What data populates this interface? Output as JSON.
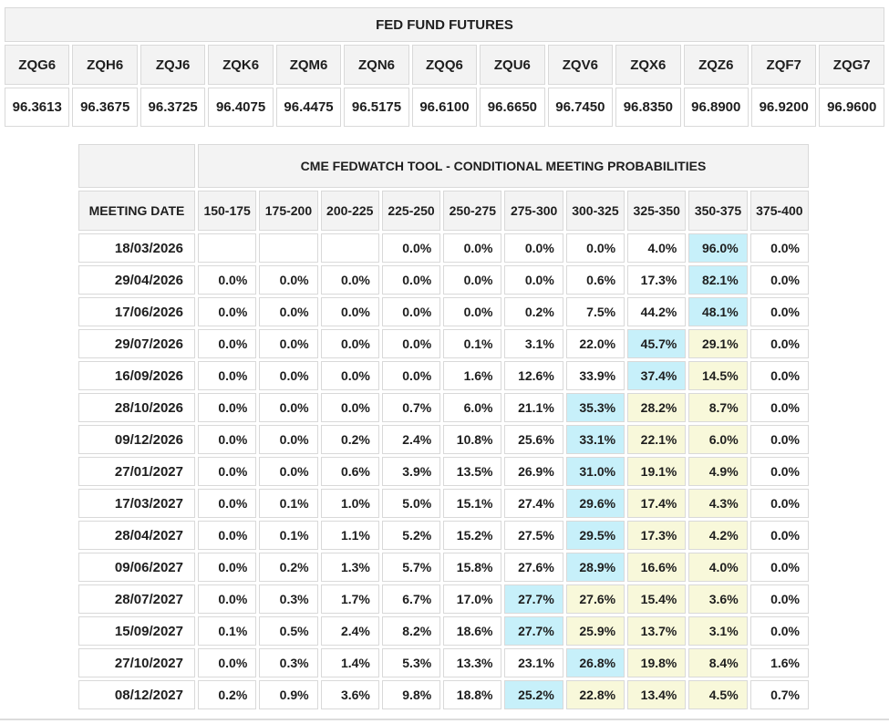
{
  "colors": {
    "cyan_highlight": "#c7f0fa",
    "yellow_highlight": "#f8f8da",
    "header_background": "#f3f3f3",
    "cell_border": "#d9d9d9"
  },
  "futures_table": {
    "title": "FED FUND FUTURES",
    "columns": [
      "ZQG6",
      "ZQH6",
      "ZQJ6",
      "ZQK6",
      "ZQM6",
      "ZQN6",
      "ZQQ6",
      "ZQU6",
      "ZQV6",
      "ZQX6",
      "ZQZ6",
      "ZQF7",
      "ZQG7"
    ],
    "values": [
      "96.3613",
      "96.3675",
      "96.3725",
      "96.4075",
      "96.4475",
      "96.5175",
      "96.6100",
      "96.6650",
      "96.7450",
      "96.8350",
      "96.8900",
      "96.9200",
      "96.9600"
    ]
  },
  "fedwatch_table": {
    "title": "CME FEDWATCH TOOL - CONDITIONAL MEETING PROBABILITIES",
    "date_header": "MEETING DATE",
    "rate_columns": [
      "150-175",
      "175-200",
      "200-225",
      "225-250",
      "250-275",
      "275-300",
      "300-325",
      "325-350",
      "350-375",
      "375-400"
    ],
    "rows": [
      {
        "date": "18/03/2026",
        "values": [
          "",
          "",
          "",
          "0.0%",
          "0.0%",
          "0.0%",
          "0.0%",
          "4.0%",
          "96.0%",
          "0.0%"
        ],
        "highlight": {
          "cyan": 8,
          "yellow": []
        }
      },
      {
        "date": "29/04/2026",
        "values": [
          "0.0%",
          "0.0%",
          "0.0%",
          "0.0%",
          "0.0%",
          "0.0%",
          "0.6%",
          "17.3%",
          "82.1%",
          "0.0%"
        ],
        "highlight": {
          "cyan": 8,
          "yellow": []
        }
      },
      {
        "date": "17/06/2026",
        "values": [
          "0.0%",
          "0.0%",
          "0.0%",
          "0.0%",
          "0.0%",
          "0.2%",
          "7.5%",
          "44.2%",
          "48.1%",
          "0.0%"
        ],
        "highlight": {
          "cyan": 8,
          "yellow": []
        }
      },
      {
        "date": "29/07/2026",
        "values": [
          "0.0%",
          "0.0%",
          "0.0%",
          "0.0%",
          "0.1%",
          "3.1%",
          "22.0%",
          "45.7%",
          "29.1%",
          "0.0%"
        ],
        "highlight": {
          "cyan": 7,
          "yellow": [
            8
          ]
        }
      },
      {
        "date": "16/09/2026",
        "values": [
          "0.0%",
          "0.0%",
          "0.0%",
          "0.0%",
          "1.6%",
          "12.6%",
          "33.9%",
          "37.4%",
          "14.5%",
          "0.0%"
        ],
        "highlight": {
          "cyan": 7,
          "yellow": [
            8
          ]
        }
      },
      {
        "date": "28/10/2026",
        "values": [
          "0.0%",
          "0.0%",
          "0.0%",
          "0.7%",
          "6.0%",
          "21.1%",
          "35.3%",
          "28.2%",
          "8.7%",
          "0.0%"
        ],
        "highlight": {
          "cyan": 6,
          "yellow": [
            7,
            8
          ]
        }
      },
      {
        "date": "09/12/2026",
        "values": [
          "0.0%",
          "0.0%",
          "0.2%",
          "2.4%",
          "10.8%",
          "25.6%",
          "33.1%",
          "22.1%",
          "6.0%",
          "0.0%"
        ],
        "highlight": {
          "cyan": 6,
          "yellow": [
            7,
            8
          ]
        }
      },
      {
        "date": "27/01/2027",
        "values": [
          "0.0%",
          "0.0%",
          "0.6%",
          "3.9%",
          "13.5%",
          "26.9%",
          "31.0%",
          "19.1%",
          "4.9%",
          "0.0%"
        ],
        "highlight": {
          "cyan": 6,
          "yellow": [
            7,
            8
          ]
        }
      },
      {
        "date": "17/03/2027",
        "values": [
          "0.0%",
          "0.1%",
          "1.0%",
          "5.0%",
          "15.1%",
          "27.4%",
          "29.6%",
          "17.4%",
          "4.3%",
          "0.0%"
        ],
        "highlight": {
          "cyan": 6,
          "yellow": [
            7,
            8
          ]
        }
      },
      {
        "date": "28/04/2027",
        "values": [
          "0.0%",
          "0.1%",
          "1.1%",
          "5.2%",
          "15.2%",
          "27.5%",
          "29.5%",
          "17.3%",
          "4.2%",
          "0.0%"
        ],
        "highlight": {
          "cyan": 6,
          "yellow": [
            7,
            8
          ]
        }
      },
      {
        "date": "09/06/2027",
        "values": [
          "0.0%",
          "0.2%",
          "1.3%",
          "5.7%",
          "15.8%",
          "27.6%",
          "28.9%",
          "16.6%",
          "4.0%",
          "0.0%"
        ],
        "highlight": {
          "cyan": 6,
          "yellow": [
            7,
            8
          ]
        }
      },
      {
        "date": "28/07/2027",
        "values": [
          "0.0%",
          "0.3%",
          "1.7%",
          "6.7%",
          "17.0%",
          "27.7%",
          "27.6%",
          "15.4%",
          "3.6%",
          "0.0%"
        ],
        "highlight": {
          "cyan": 5,
          "yellow": [
            6,
            7,
            8
          ]
        }
      },
      {
        "date": "15/09/2027",
        "values": [
          "0.1%",
          "0.5%",
          "2.4%",
          "8.2%",
          "18.6%",
          "27.7%",
          "25.9%",
          "13.7%",
          "3.1%",
          "0.0%"
        ],
        "highlight": {
          "cyan": 5,
          "yellow": [
            6,
            7,
            8
          ]
        }
      },
      {
        "date": "27/10/2027",
        "values": [
          "0.0%",
          "0.3%",
          "1.4%",
          "5.3%",
          "13.3%",
          "23.1%",
          "26.8%",
          "19.8%",
          "8.4%",
          "1.6%"
        ],
        "highlight": {
          "cyan": 6,
          "yellow": [
            7,
            8
          ]
        }
      },
      {
        "date": "08/12/2027",
        "values": [
          "0.2%",
          "0.9%",
          "3.6%",
          "9.8%",
          "18.8%",
          "25.2%",
          "22.8%",
          "13.4%",
          "4.5%",
          "0.7%"
        ],
        "highlight": {
          "cyan": 5,
          "yellow": [
            6,
            7,
            8
          ]
        }
      }
    ]
  },
  "chart_data": [
    {
      "type": "table",
      "title": "FED FUND FUTURES",
      "columns": [
        "ZQG6",
        "ZQH6",
        "ZQJ6",
        "ZQK6",
        "ZQM6",
        "ZQN6",
        "ZQQ6",
        "ZQU6",
        "ZQV6",
        "ZQX6",
        "ZQZ6",
        "ZQF7",
        "ZQG7"
      ],
      "rows": [
        [
          96.3613,
          96.3675,
          96.3725,
          96.4075,
          96.4475,
          96.5175,
          96.61,
          96.665,
          96.745,
          96.835,
          96.89,
          96.92,
          96.96
        ]
      ]
    },
    {
      "type": "table",
      "title": "CME FEDWATCH TOOL - CONDITIONAL MEETING PROBABILITIES",
      "columns": [
        "MEETING DATE",
        "150-175",
        "175-200",
        "200-225",
        "225-250",
        "250-275",
        "275-300",
        "300-325",
        "325-350",
        "350-375",
        "375-400"
      ],
      "unit": "percent",
      "rows": [
        [
          "18/03/2026",
          null,
          null,
          null,
          0.0,
          0.0,
          0.0,
          0.0,
          4.0,
          96.0,
          0.0
        ],
        [
          "29/04/2026",
          0.0,
          0.0,
          0.0,
          0.0,
          0.0,
          0.0,
          0.6,
          17.3,
          82.1,
          0.0
        ],
        [
          "17/06/2026",
          0.0,
          0.0,
          0.0,
          0.0,
          0.0,
          0.2,
          7.5,
          44.2,
          48.1,
          0.0
        ],
        [
          "29/07/2026",
          0.0,
          0.0,
          0.0,
          0.0,
          0.1,
          3.1,
          22.0,
          45.7,
          29.1,
          0.0
        ],
        [
          "16/09/2026",
          0.0,
          0.0,
          0.0,
          0.0,
          1.6,
          12.6,
          33.9,
          37.4,
          14.5,
          0.0
        ],
        [
          "28/10/2026",
          0.0,
          0.0,
          0.0,
          0.7,
          6.0,
          21.1,
          35.3,
          28.2,
          8.7,
          0.0
        ],
        [
          "09/12/2026",
          0.0,
          0.0,
          0.2,
          2.4,
          10.8,
          25.6,
          33.1,
          22.1,
          6.0,
          0.0
        ],
        [
          "27/01/2027",
          0.0,
          0.0,
          0.6,
          3.9,
          13.5,
          26.9,
          31.0,
          19.1,
          4.9,
          0.0
        ],
        [
          "17/03/2027",
          0.0,
          0.1,
          1.0,
          5.0,
          15.1,
          27.4,
          29.6,
          17.4,
          4.3,
          0.0
        ],
        [
          "28/04/2027",
          0.0,
          0.1,
          1.1,
          5.2,
          15.2,
          27.5,
          29.5,
          17.3,
          4.2,
          0.0
        ],
        [
          "09/06/2027",
          0.0,
          0.2,
          1.3,
          5.7,
          15.8,
          27.6,
          28.9,
          16.6,
          4.0,
          0.0
        ],
        [
          "28/07/2027",
          0.0,
          0.3,
          1.7,
          6.7,
          17.0,
          27.7,
          27.6,
          15.4,
          3.6,
          0.0
        ],
        [
          "15/09/2027",
          0.1,
          0.5,
          2.4,
          8.2,
          18.6,
          27.7,
          25.9,
          13.7,
          3.1,
          0.0
        ],
        [
          "27/10/2027",
          0.0,
          0.3,
          1.4,
          5.3,
          13.3,
          23.1,
          26.8,
          19.8,
          8.4,
          1.6
        ],
        [
          "08/12/2027",
          0.2,
          0.9,
          3.6,
          9.8,
          18.8,
          25.2,
          22.8,
          13.4,
          4.5,
          0.7
        ]
      ]
    }
  ]
}
